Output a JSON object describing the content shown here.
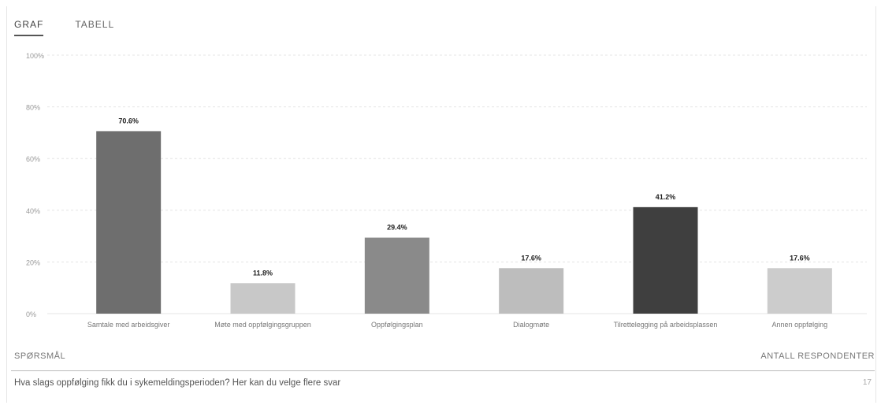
{
  "tabs": [
    {
      "label": "GRAF",
      "active": true
    },
    {
      "label": "TABELL",
      "active": false
    }
  ],
  "chart_data": {
    "type": "bar",
    "categories": [
      "Samtale med arbeidsgiver",
      "Møte med oppfølgingsgruppen",
      "Oppfølgingsplan",
      "Dialogmøte",
      "Tilrettelegging på arbeidsplassen",
      "Annen oppfølging"
    ],
    "values": [
      70.6,
      11.8,
      29.4,
      17.6,
      41.2,
      17.6
    ],
    "value_labels": [
      "70.6%",
      "11.8%",
      "29.4%",
      "17.6%",
      "41.2%",
      "17.6%"
    ],
    "bar_colors": [
      "#6e6e6e",
      "#c8c8c8",
      "#8a8a8a",
      "#bdbdbd",
      "#3f3f3f",
      "#cccccc"
    ],
    "yticks": [
      "0%",
      "20%",
      "40%",
      "60%",
      "80%",
      "100%"
    ],
    "ylim": [
      0,
      100
    ],
    "grid": true,
    "title": "",
    "xlabel": "",
    "ylabel": ""
  },
  "footer": {
    "question_header": "SPØRSMÅL",
    "respondents_header": "ANTALL RESPONDENTER",
    "question_text": "Hva slags oppfølging fikk du i sykemeldingsperioden? Her kan du velge flere svar",
    "respondents_count": "17"
  }
}
